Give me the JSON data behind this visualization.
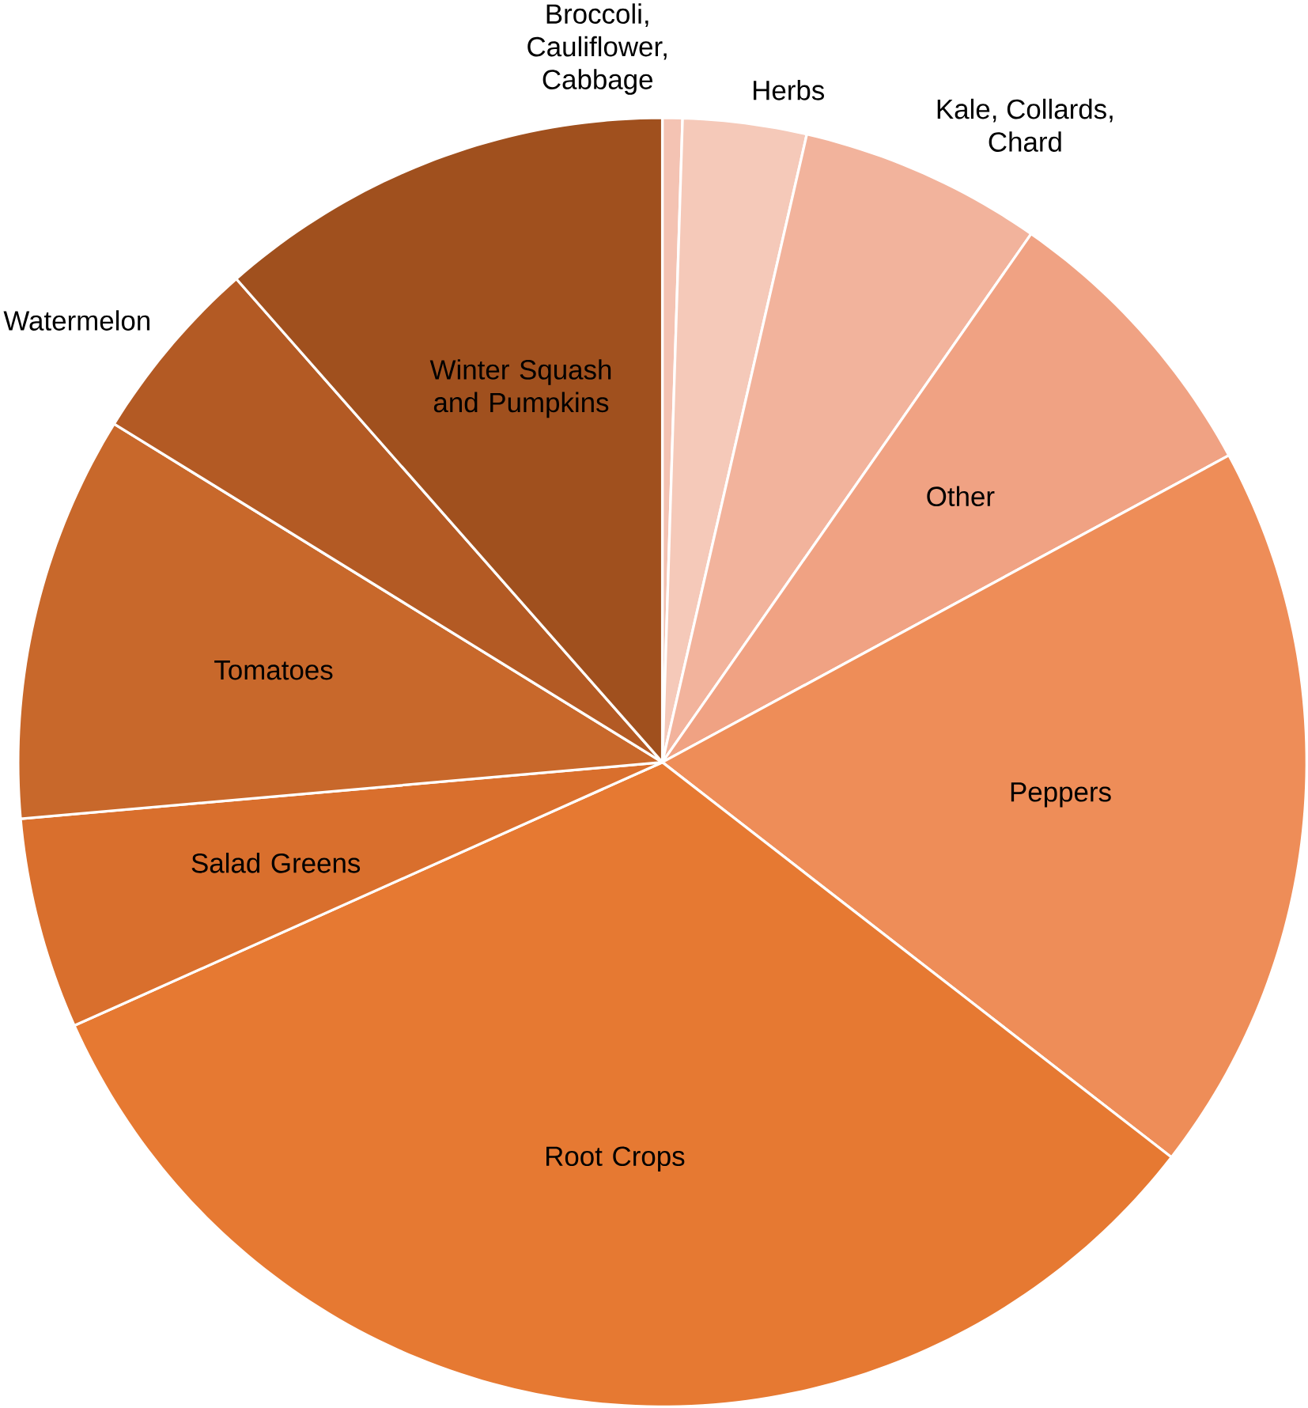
{
  "chart_data": {
    "type": "pie",
    "categories": [
      "Broccoli, Cauliflower, Cabbage",
      "Herbs",
      "Kale, Collards, Chard",
      "Other",
      "Peppers",
      "Root Crops",
      "Salad Greens",
      "Tomatoes",
      "Watermelon",
      "Winter Squash and Pumpkins"
    ],
    "values": [
      0.5,
      3.1,
      6.1,
      7.4,
      18.4,
      32.8,
      5.3,
      10.2,
      4.7,
      11.5
    ],
    "colors": [
      "#f4c3b3",
      "#f5c9b9",
      "#f2b39c",
      "#f0a283",
      "#ee8d58",
      "#e67932",
      "#d96f2d",
      "#c8682b",
      "#b35a24",
      "#a0501e"
    ]
  }
}
